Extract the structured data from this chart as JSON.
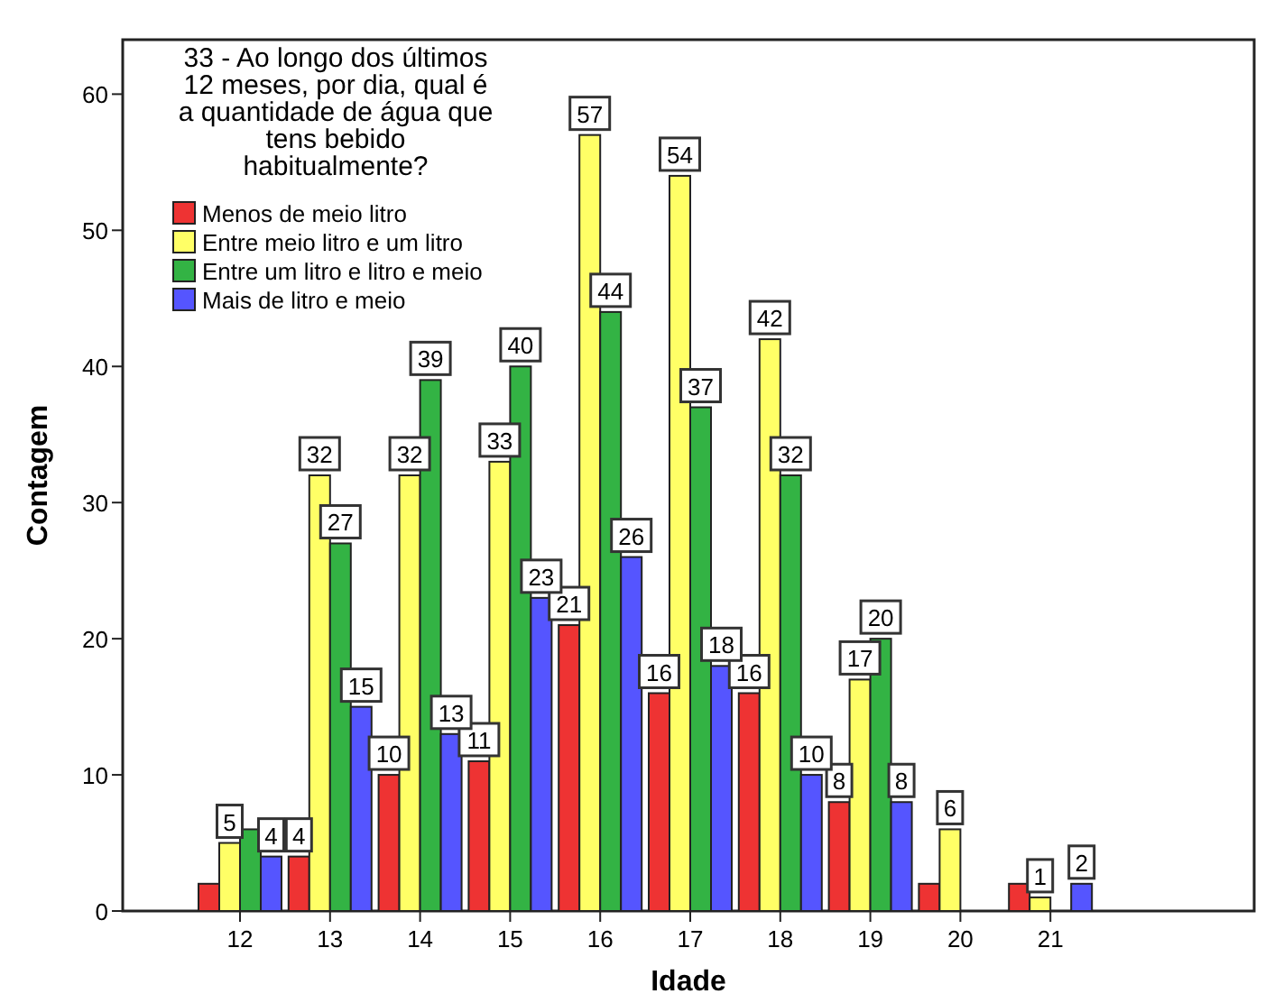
{
  "chart_data": {
    "type": "bar",
    "xlabel": "Idade",
    "ylabel": "Contagem",
    "legend_title": "33 - Ao longo dos últimos\n12 meses, por dia, qual é\na quantidade de água que\ntens bebido\nhabitualmente?",
    "legend": "top left",
    "categories": [
      "12",
      "13",
      "14",
      "15",
      "16",
      "17",
      "18",
      "19",
      "20",
      "21"
    ],
    "ylim": [
      0,
      64
    ],
    "yticks": [
      0,
      10,
      20,
      30,
      40,
      50,
      60
    ],
    "series": [
      {
        "name": "Menos de meio litro",
        "color": "#ee3333",
        "values": [
          2,
          4,
          10,
          11,
          21,
          16,
          16,
          8,
          2,
          2
        ],
        "value_labels": [
          null,
          "4",
          "10",
          "11",
          "21",
          "16",
          "16",
          "8",
          null,
          null
        ]
      },
      {
        "name": "Entre meio litro e um litro",
        "color": "#ffff66",
        "values": [
          5,
          32,
          32,
          33,
          57,
          54,
          42,
          17,
          6,
          1
        ],
        "value_labels": [
          "5",
          "32",
          "32",
          "33",
          "57",
          "54",
          "42",
          "17",
          "6",
          "1"
        ]
      },
      {
        "name": "Entre um litro e litro e meio",
        "color": "#33b344",
        "values": [
          6,
          27,
          39,
          40,
          44,
          37,
          32,
          20,
          null,
          null
        ],
        "value_labels": [
          null,
          "27",
          "39",
          "40",
          "44",
          "37",
          "32",
          "20",
          null,
          null
        ]
      },
      {
        "name": "Mais de litro e meio",
        "color": "#5555ff",
        "values": [
          4,
          15,
          13,
          23,
          26,
          18,
          10,
          8,
          null,
          2
        ],
        "value_labels": [
          "4",
          "15",
          "13",
          "23",
          "26",
          "18",
          "10",
          "8",
          null,
          "2"
        ]
      }
    ]
  }
}
